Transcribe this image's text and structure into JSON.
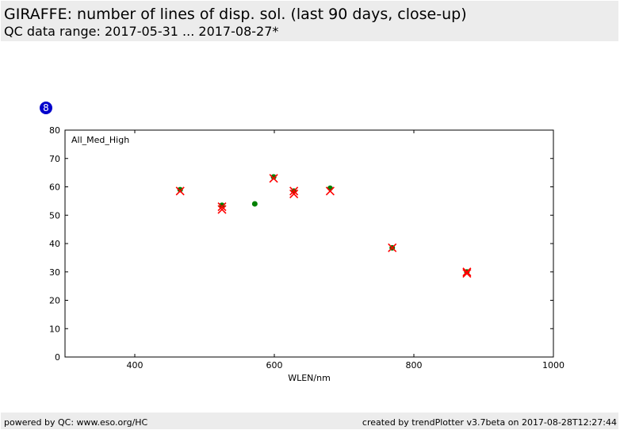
{
  "header": {
    "title": "GIRAFFE: number of lines of disp. sol. (last 90 days, close-up)",
    "subtitle": "QC data range: 2017-05-31 ... 2017-08-27*"
  },
  "badge": {
    "label": "8",
    "color": "#0000cc"
  },
  "footer": {
    "left": "powered by QC: www.eso.org/HC",
    "right": "created by trendPlotter v3.7beta on 2017-08-28T12:27:44"
  },
  "chart_data": {
    "type": "scatter",
    "title": "",
    "annotation": "All_Med_High",
    "xlabel": "WLEN/nm",
    "ylabel": "",
    "xlim": [
      300,
      1000
    ],
    "ylim": [
      0,
      80
    ],
    "x_ticks": [
      400,
      600,
      800,
      1000
    ],
    "y_ticks": [
      0,
      10,
      20,
      30,
      40,
      50,
      60,
      70,
      80
    ],
    "grid": false,
    "series": [
      {
        "marker": "circle",
        "color": "#008000",
        "points": [
          [
            465,
            59
          ],
          [
            525,
            53.5
          ],
          [
            572,
            54
          ],
          [
            599,
            63.5
          ],
          [
            628,
            58.5
          ],
          [
            680,
            59.5
          ],
          [
            769,
            38.5
          ],
          [
            876,
            30
          ]
        ]
      },
      {
        "marker": "x",
        "color": "#ff0000",
        "points": [
          [
            465,
            58.5
          ],
          [
            525,
            52
          ],
          [
            525,
            53
          ],
          [
            599,
            63
          ],
          [
            628,
            57.5
          ],
          [
            628,
            58.5
          ],
          [
            680,
            58.5
          ],
          [
            769,
            38.5
          ],
          [
            876,
            29.5
          ],
          [
            876,
            30
          ]
        ]
      }
    ]
  }
}
